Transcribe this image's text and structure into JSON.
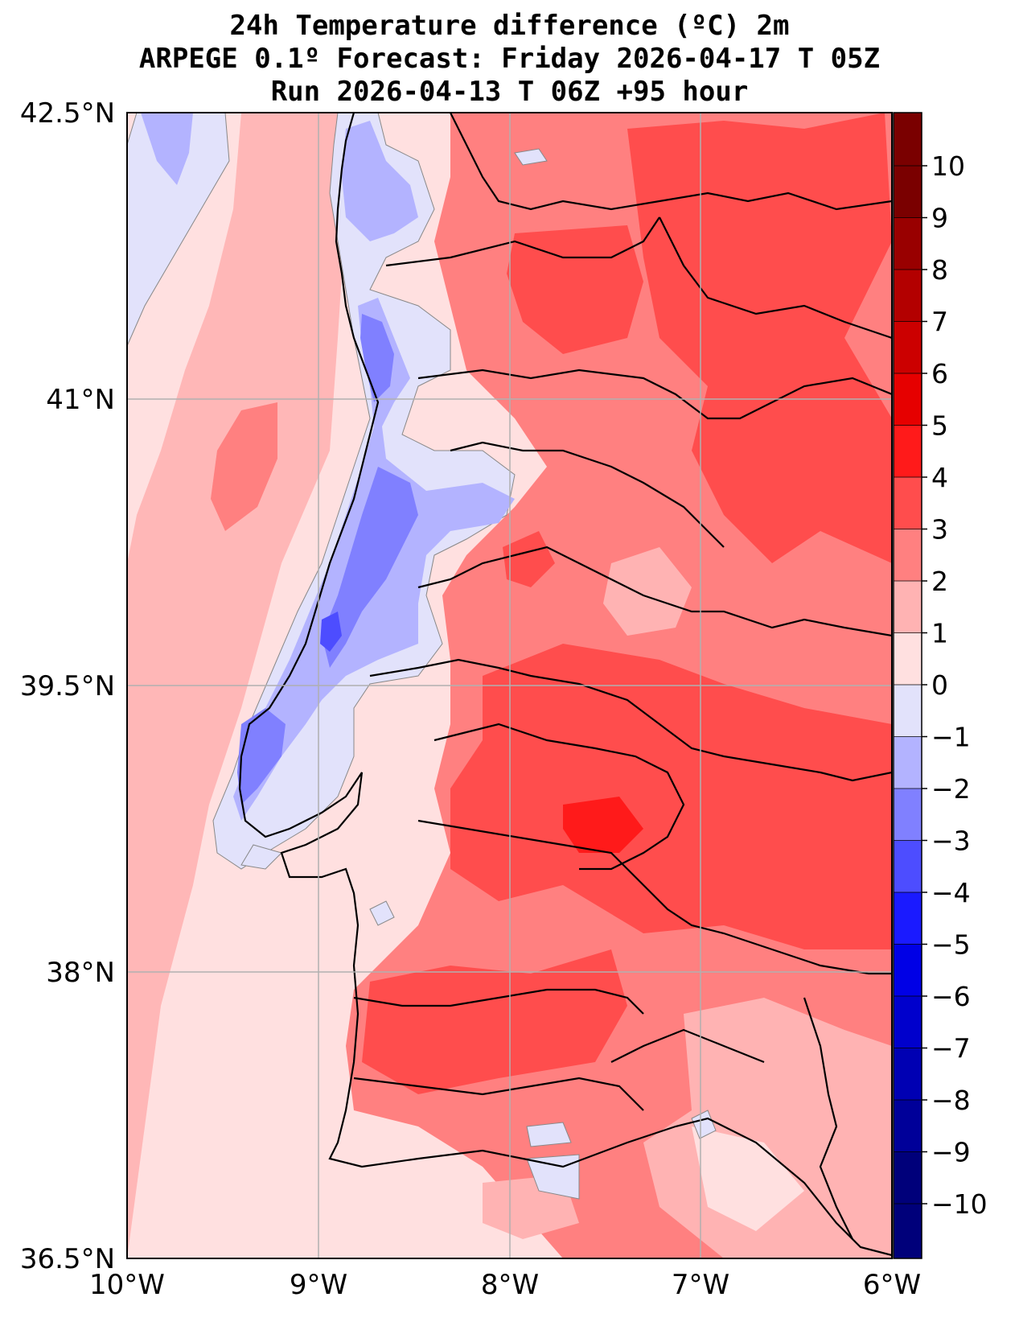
{
  "title": {
    "line1": "24h Temperature difference (ºC) 2m",
    "line2": "ARPEGE 0.1º Forecast: Friday 2026-04-17 T 05Z",
    "line3": "Run 2026-04-13 T 06Z +95 hour"
  },
  "axes": {
    "lat_labels": [
      "42.5°N",
      "41°N",
      "39.5°N",
      "38°N",
      "36.5°N"
    ],
    "lon_labels": [
      "10°W",
      "9°W",
      "8°W",
      "7°W",
      "6°W"
    ]
  },
  "colorbar": {
    "tick_labels": [
      "10",
      "9",
      "8",
      "7",
      "6",
      "5",
      "4",
      "3",
      "2",
      "1",
      "0",
      "−1",
      "−2",
      "−3",
      "−4",
      "−5",
      "−6",
      "−7",
      "−8",
      "−9",
      "−10"
    ],
    "colors": [
      "#7a0000",
      "#990000",
      "#b30000",
      "#cc0000",
      "#e60000",
      "#ff1a1a",
      "#ff4d4d",
      "#ff8080",
      "#ffb3b3",
      "#ffe0e0",
      "#e2e2fb",
      "#b3b3ff",
      "#8080ff",
      "#4d4dff",
      "#1a1aff",
      "#0000e6",
      "#0000cc",
      "#0000b3",
      "#000099",
      "#00007a"
    ]
  }
}
